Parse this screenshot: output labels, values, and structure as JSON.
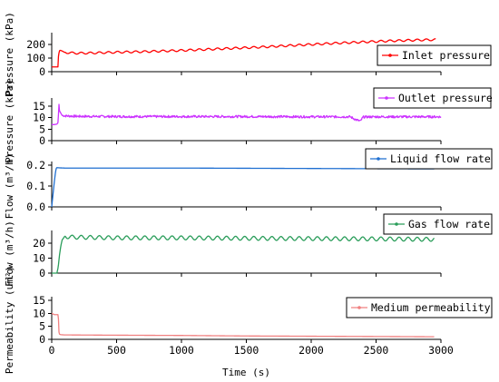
{
  "chart_data": {
    "type": "line",
    "shared_x": {
      "xlabel": "Time (s)",
      "xlim": [
        0,
        3000
      ],
      "xticks": [
        0,
        500,
        1000,
        1500,
        2000,
        2500,
        3000
      ],
      "tick_labels": [
        "0",
        "500",
        "1000",
        "1500",
        "2000",
        "2500",
        "3000"
      ]
    },
    "panels": [
      {
        "key": "inlet",
        "ylabel": "Pressure (kPa)",
        "ylim": [
          0,
          260
        ],
        "yticks": [
          0,
          100,
          200
        ],
        "ytick_labels": [
          "0",
          "100",
          "200"
        ],
        "legend": "Inlet pressure",
        "color": "#ff0000",
        "series": {
          "x": [
            0,
            20,
            40,
            48,
            50,
            58,
            65,
            80,
            100,
            150,
            200,
            300,
            400,
            500,
            600,
            700,
            800,
            900,
            1000,
            1100,
            1200,
            1300,
            1400,
            1500,
            1600,
            1700,
            1800,
            1900,
            2000,
            2100,
            2200,
            2300,
            2400,
            2500,
            2600,
            2700,
            2800,
            2900,
            2960
          ],
          "y": [
            35,
            35,
            35,
            35,
            100,
            150,
            158,
            152,
            142,
            138,
            136,
            137,
            140,
            143,
            145,
            147,
            150,
            153,
            156,
            160,
            164,
            168,
            172,
            176,
            180,
            185,
            190,
            195,
            200,
            205,
            210,
            214,
            218,
            222,
            226,
            229,
            232,
            234,
            235
          ],
          "oscillation": 7,
          "period_s": 70
        }
      },
      {
        "key": "outlet",
        "ylabel": "Pressure (kPa)",
        "ylim": [
          0,
          17
        ],
        "yticks": [
          0,
          5,
          10,
          15
        ],
        "ytick_labels": [
          "0",
          "5",
          "10",
          "15"
        ],
        "legend": "Outlet pressure",
        "color": "#cc33ff",
        "series": {
          "x": [
            0,
            20,
            40,
            50,
            55,
            60,
            70,
            80,
            100,
            200,
            500,
            1000,
            1500,
            2000,
            2300,
            2350,
            2380,
            2400,
            2500,
            3000
          ],
          "y": [
            7,
            7,
            7.2,
            8,
            16.5,
            13,
            12,
            11,
            10.8,
            10.6,
            10.5,
            10.5,
            10.5,
            10.4,
            10.4,
            9.0,
            8.5,
            10.3,
            10.4,
            10.4
          ],
          "noise": 0.5
        }
      },
      {
        "key": "liquid",
        "ylabel": "Flow (m³/h)",
        "ylim": [
          0,
          0.2
        ],
        "yticks": [
          0.0,
          0.1,
          0.2
        ],
        "ytick_labels": [
          "0.0",
          "0.1",
          "0.2"
        ],
        "legend": "Liquid flow rate",
        "color": "#1f6fd1",
        "series": {
          "x": [
            0,
            10,
            20,
            30,
            35,
            40,
            60,
            100,
            500,
            1000,
            1500,
            2000,
            2500,
            2950
          ],
          "y": [
            0.0,
            0.06,
            0.12,
            0.17,
            0.185,
            0.188,
            0.187,
            0.186,
            0.186,
            0.186,
            0.185,
            0.184,
            0.183,
            0.182
          ]
        }
      },
      {
        "key": "gas",
        "ylabel": "Flow (m³/h)",
        "ylim": [
          0,
          26
        ],
        "yticks": [
          0,
          10,
          20
        ],
        "ytick_labels": [
          "0",
          "10",
          "20"
        ],
        "legend": "Gas flow rate",
        "color": "#2a9d5a",
        "series": {
          "x": [
            0,
            40,
            50,
            60,
            70,
            80,
            100,
            150,
            500,
            1000,
            1500,
            2000,
            2500,
            2950
          ],
          "y": [
            0,
            0,
            4,
            12,
            18,
            22,
            24.5,
            24,
            23.5,
            23.5,
            23.2,
            23,
            22.8,
            22.5
          ],
          "oscillation": 1.3,
          "period_s": 70
        }
      },
      {
        "key": "perm",
        "ylabel": "Permeability (um²)",
        "ylim": [
          0,
          15
        ],
        "yticks": [
          0,
          5,
          10,
          15
        ],
        "ytick_labels": [
          "0",
          "5",
          "10",
          "15"
        ],
        "legend": "Medium permeability",
        "color": "#f08080",
        "series": {
          "x": [
            0,
            20,
            48,
            50,
            55,
            60,
            70,
            100,
            500,
            1000,
            1500,
            2000,
            2500,
            2950
          ],
          "y": [
            10,
            9.5,
            9.5,
            11,
            3,
            2,
            1.8,
            1.7,
            1.6,
            1.5,
            1.3,
            1.2,
            1.1,
            1.0
          ]
        }
      }
    ]
  }
}
